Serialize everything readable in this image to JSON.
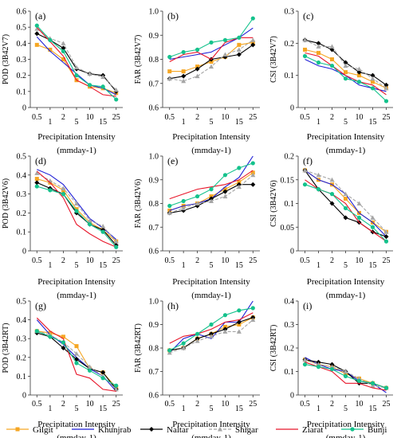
{
  "x_categories": [
    "0.5",
    "1",
    "2",
    "5",
    "10",
    "15",
    "25"
  ],
  "xlabel_line1": "Precipitation Intensity",
  "xlabel_line2": "(mmday-1)",
  "series_styles": [
    {
      "name": "Gilgit",
      "color": "#f5a623",
      "marker": "square",
      "dash": ""
    },
    {
      "name": "Khunjrab",
      "color": "#1f1fd6",
      "marker": "none",
      "dash": ""
    },
    {
      "name": "Naltar",
      "color": "#000000",
      "marker": "diamond",
      "dash": ""
    },
    {
      "name": "Shigar",
      "color": "#a6a6a6",
      "marker": "triangle",
      "dash": "4,2"
    },
    {
      "name": "Ziarat",
      "color": "#e8162a",
      "marker": "none",
      "dash": ""
    },
    {
      "name": "Bunji",
      "color": "#14c28c",
      "marker": "circle",
      "dash": ""
    }
  ],
  "chart_data": [
    {
      "type": "line",
      "panel_label": "(a)",
      "ylabel": "POD (3B42V7)",
      "ylim": [
        0,
        0.6
      ],
      "yticks": [
        "0",
        "0.1",
        "0.2",
        "0.3",
        "0.4",
        "0.5",
        "0.6"
      ],
      "categories": [
        "0.5",
        "1",
        "2",
        "5",
        "10",
        "15",
        "25"
      ],
      "series": [
        {
          "name": "Gilgit",
          "values": [
            0.39,
            0.36,
            0.3,
            0.17,
            0.13,
            0.12,
            0.09
          ]
        },
        {
          "name": "Khunjrab",
          "values": [
            0.44,
            0.35,
            0.28,
            0.21,
            0.14,
            0.12,
            0.08
          ]
        },
        {
          "name": "Naltar",
          "values": [
            0.46,
            0.42,
            0.37,
            0.24,
            0.21,
            0.2,
            0.1
          ]
        },
        {
          "name": "Shigar",
          "values": [
            0.49,
            0.43,
            0.4,
            0.25,
            0.21,
            0.19,
            0.11
          ]
        },
        {
          "name": "Ziarat",
          "values": [
            0.5,
            0.41,
            0.32,
            0.17,
            0.13,
            0.08,
            0.07
          ]
        },
        {
          "name": "Bunji",
          "values": [
            0.51,
            0.42,
            0.35,
            0.2,
            0.14,
            0.13,
            0.05
          ]
        }
      ]
    },
    {
      "type": "line",
      "panel_label": "(b)",
      "ylabel": "FAR (3B42V7)",
      "ylim": [
        0.6,
        1.0
      ],
      "yticks": [
        "0.6",
        "0.7",
        "0.8",
        "0.9",
        "1.0"
      ],
      "categories": [
        "0.5",
        "1",
        "2",
        "5",
        "10",
        "15",
        "25"
      ],
      "series": [
        {
          "name": "Gilgit",
          "values": [
            0.75,
            0.75,
            0.77,
            0.79,
            0.81,
            0.86,
            0.87
          ]
        },
        {
          "name": "Khunjrab",
          "values": [
            0.8,
            0.81,
            0.82,
            0.83,
            0.86,
            0.89,
            0.93
          ]
        },
        {
          "name": "Naltar",
          "values": [
            0.72,
            0.73,
            0.76,
            0.8,
            0.81,
            0.82,
            0.86
          ]
        },
        {
          "name": "Shigar",
          "values": [
            0.72,
            0.71,
            0.73,
            0.77,
            0.82,
            0.84,
            0.88
          ]
        },
        {
          "name": "Ziarat",
          "values": [
            0.79,
            0.82,
            0.83,
            0.8,
            0.87,
            0.89,
            0.89
          ]
        },
        {
          "name": "Bunji",
          "values": [
            0.81,
            0.83,
            0.84,
            0.87,
            0.88,
            0.89,
            0.97
          ]
        }
      ]
    },
    {
      "type": "line",
      "panel_label": "(c)",
      "ylabel": "CSI (3B42V7)",
      "ylim": [
        0,
        0.3
      ],
      "yticks": [
        "0",
        "0.1",
        "0.2",
        "0.3"
      ],
      "categories": [
        "0.5",
        "1",
        "2",
        "5",
        "10",
        "15",
        "25"
      ],
      "series": [
        {
          "name": "Gilgit",
          "values": [
            0.18,
            0.17,
            0.15,
            0.11,
            0.1,
            0.08,
            0.06
          ]
        },
        {
          "name": "Khunjrab",
          "values": [
            0.15,
            0.13,
            0.12,
            0.1,
            0.07,
            0.06,
            0.05
          ]
        },
        {
          "name": "Naltar",
          "values": [
            0.21,
            0.2,
            0.18,
            0.14,
            0.11,
            0.1,
            0.07
          ]
        },
        {
          "name": "Shigar",
          "values": [
            0.21,
            0.19,
            0.19,
            0.13,
            0.12,
            0.09,
            0.06
          ]
        },
        {
          "name": "Ziarat",
          "values": [
            0.17,
            0.16,
            0.13,
            0.1,
            0.08,
            0.07,
            0.04
          ]
        },
        {
          "name": "Bunji",
          "values": [
            0.16,
            0.14,
            0.13,
            0.09,
            0.08,
            0.06,
            0.02
          ]
        }
      ]
    },
    {
      "type": "line",
      "panel_label": "(d)",
      "ylabel": "POD (3B42V6)",
      "ylim": [
        0,
        0.5
      ],
      "yticks": [
        "0",
        "0.1",
        "0.2",
        "0.3",
        "0.4",
        "0.5"
      ],
      "categories": [
        "0.5",
        "1",
        "2",
        "5",
        "10",
        "15",
        "25"
      ],
      "series": [
        {
          "name": "Gilgit",
          "values": [
            0.38,
            0.36,
            0.32,
            0.22,
            0.15,
            0.11,
            0.05
          ]
        },
        {
          "name": "Khunjrab",
          "values": [
            0.43,
            0.4,
            0.35,
            0.26,
            0.17,
            0.12,
            0.06
          ]
        },
        {
          "name": "Naltar",
          "values": [
            0.36,
            0.33,
            0.3,
            0.2,
            0.14,
            0.11,
            0.03
          ]
        },
        {
          "name": "Shigar",
          "values": [
            0.41,
            0.37,
            0.33,
            0.25,
            0.16,
            0.13,
            0.05
          ]
        },
        {
          "name": "Ziarat",
          "values": [
            0.42,
            0.36,
            0.28,
            0.14,
            0.09,
            0.05,
            0.02
          ]
        },
        {
          "name": "Bunji",
          "values": [
            0.34,
            0.32,
            0.3,
            0.21,
            0.14,
            0.1,
            0.02
          ]
        }
      ]
    },
    {
      "type": "line",
      "panel_label": "(e)",
      "ylabel": "FAR (3B42V6)",
      "ylim": [
        0.6,
        1.0
      ],
      "yticks": [
        "0.6",
        "0.7",
        "0.8",
        "0.9",
        "1.0"
      ],
      "categories": [
        "0.5",
        "1",
        "2",
        "5",
        "10",
        "15",
        "25"
      ],
      "series": [
        {
          "name": "Gilgit",
          "values": [
            0.77,
            0.79,
            0.8,
            0.83,
            0.86,
            0.89,
            0.93
          ]
        },
        {
          "name": "Khunjrab",
          "values": [
            0.77,
            0.79,
            0.8,
            0.82,
            0.87,
            0.91,
            1.0
          ]
        },
        {
          "name": "Naltar",
          "values": [
            0.76,
            0.77,
            0.79,
            0.82,
            0.85,
            0.88,
            0.88
          ]
        },
        {
          "name": "Shigar",
          "values": [
            0.76,
            0.78,
            0.8,
            0.81,
            0.83,
            0.87,
            0.92
          ]
        },
        {
          "name": "Ziarat",
          "values": [
            0.82,
            0.84,
            0.86,
            0.87,
            0.88,
            0.9,
            0.94
          ]
        },
        {
          "name": "Bunji",
          "values": [
            0.79,
            0.81,
            0.83,
            0.86,
            0.92,
            0.95,
            0.97
          ]
        }
      ]
    },
    {
      "type": "line",
      "panel_label": "(f)",
      "ylabel": "CSI (3B42V6)",
      "ylim": [
        0,
        0.2
      ],
      "yticks": [
        "0",
        "0.05",
        "0.1",
        "0.15",
        "0.2"
      ],
      "categories": [
        "0.5",
        "1",
        "2",
        "5",
        "10",
        "15",
        "25"
      ],
      "series": [
        {
          "name": "Gilgit",
          "values": [
            0.17,
            0.15,
            0.14,
            0.11,
            0.08,
            0.06,
            0.04
          ]
        },
        {
          "name": "Khunjrab",
          "values": [
            0.17,
            0.15,
            0.14,
            0.12,
            0.08,
            0.06,
            0.03
          ]
        },
        {
          "name": "Naltar",
          "values": [
            0.17,
            0.13,
            0.1,
            0.07,
            0.06,
            0.04,
            0.03
          ]
        },
        {
          "name": "Shigar",
          "values": [
            0.17,
            0.16,
            0.15,
            0.12,
            0.1,
            0.07,
            0.04
          ]
        },
        {
          "name": "Ziarat",
          "values": [
            0.15,
            0.13,
            0.12,
            0.1,
            0.06,
            0.04,
            0.02
          ]
        },
        {
          "name": "Bunji",
          "values": [
            0.14,
            0.13,
            0.12,
            0.09,
            0.07,
            0.05,
            0.02
          ]
        }
      ]
    },
    {
      "type": "line",
      "panel_label": "(g)",
      "ylabel": "POD (3B42RT)",
      "ylim": [
        0,
        0.5
      ],
      "yticks": [
        "0",
        "0.1",
        "0.2",
        "0.3",
        "0.4",
        "0.5"
      ],
      "categories": [
        "0.5",
        "1",
        "2",
        "5",
        "10",
        "15",
        "25"
      ],
      "series": [
        {
          "name": "Gilgit",
          "values": [
            0.34,
            0.33,
            0.31,
            0.26,
            0.14,
            0.12,
            0.04
          ]
        },
        {
          "name": "Khunjrab",
          "values": [
            0.4,
            0.32,
            0.27,
            0.2,
            0.14,
            0.1,
            0.02
          ]
        },
        {
          "name": "Naltar",
          "values": [
            0.33,
            0.31,
            0.25,
            0.19,
            0.14,
            0.12,
            0.03
          ]
        },
        {
          "name": "Shigar",
          "values": [
            0.34,
            0.32,
            0.28,
            0.22,
            0.15,
            0.1,
            0.03
          ]
        },
        {
          "name": "Ziarat",
          "values": [
            0.41,
            0.34,
            0.3,
            0.11,
            0.09,
            0.03,
            0.02
          ]
        },
        {
          "name": "Bunji",
          "values": [
            0.34,
            0.31,
            0.28,
            0.17,
            0.13,
            0.09,
            0.05
          ]
        }
      ]
    },
    {
      "type": "line",
      "panel_label": "(h)",
      "ylabel": "FAR (3B42RT)",
      "ylim": [
        0.6,
        1.0
      ],
      "yticks": [
        "0.6",
        "0.7",
        "0.8",
        "0.9",
        "1.0"
      ],
      "categories": [
        "0.5",
        "1",
        "2",
        "5",
        "10",
        "15",
        "25"
      ],
      "series": [
        {
          "name": "Gilgit",
          "values": [
            0.79,
            0.8,
            0.84,
            0.86,
            0.89,
            0.9,
            0.93
          ]
        },
        {
          "name": "Khunjrab",
          "values": [
            0.78,
            0.84,
            0.86,
            0.84,
            0.91,
            0.91,
            1.0
          ]
        },
        {
          "name": "Naltar",
          "values": [
            0.79,
            0.8,
            0.84,
            0.86,
            0.88,
            0.91,
            0.93
          ]
        },
        {
          "name": "Shigar",
          "values": [
            0.78,
            0.8,
            0.83,
            0.85,
            0.87,
            0.87,
            0.92
          ]
        },
        {
          "name": "Ziarat",
          "values": [
            0.82,
            0.85,
            0.86,
            0.88,
            0.91,
            0.92,
            0.95
          ]
        },
        {
          "name": "Bunji",
          "values": [
            0.79,
            0.82,
            0.86,
            0.9,
            0.94,
            0.96,
            0.97
          ]
        }
      ]
    },
    {
      "type": "line",
      "panel_label": "(i)",
      "ylabel": "CSI (3B42RT)",
      "ylim": [
        0,
        0.4
      ],
      "yticks": [
        "0",
        "0.1",
        "0.2",
        "0.3",
        "0.4"
      ],
      "categories": [
        "0.5",
        "1",
        "2",
        "5",
        "10",
        "15",
        "25"
      ],
      "series": [
        {
          "name": "Gilgit",
          "values": [
            0.15,
            0.13,
            0.12,
            0.09,
            0.07,
            0.05,
            0.03
          ]
        },
        {
          "name": "Khunjrab",
          "values": [
            0.16,
            0.13,
            0.11,
            0.1,
            0.06,
            0.05,
            0.01
          ]
        },
        {
          "name": "Naltar",
          "values": [
            0.15,
            0.14,
            0.13,
            0.1,
            0.05,
            0.05,
            0.03
          ]
        },
        {
          "name": "Shigar",
          "values": [
            0.15,
            0.13,
            0.12,
            0.1,
            0.07,
            0.04,
            0.03
          ]
        },
        {
          "name": "Ziarat",
          "values": [
            0.14,
            0.12,
            0.1,
            0.05,
            0.05,
            0.03,
            0.02
          ]
        },
        {
          "name": "Bunji",
          "values": [
            0.13,
            0.12,
            0.11,
            0.08,
            0.06,
            0.05,
            0.03
          ]
        }
      ]
    }
  ]
}
